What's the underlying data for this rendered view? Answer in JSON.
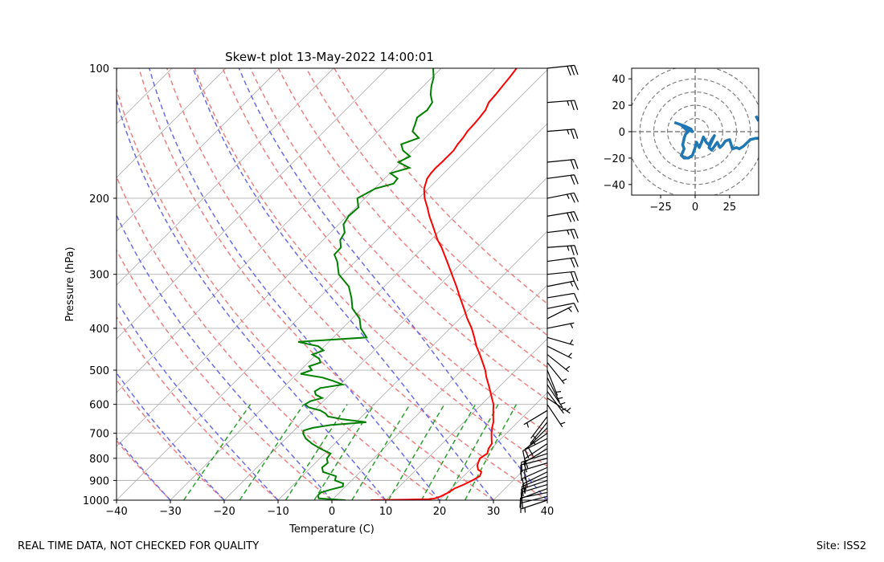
{
  "chart_data": [
    {
      "type": "skew-t",
      "title": "Skew-t plot 13-May-2022 14:00:01",
      "xlabel": "Temperature (C)",
      "ylabel": "Pressure (hPa)",
      "xlim": [
        -40,
        40
      ],
      "ylim": [
        1000,
        100
      ],
      "x_ticks": [
        -40,
        -30,
        -20,
        -10,
        0,
        10,
        20,
        30,
        40
      ],
      "x_tick_labels": [
        "−40",
        "−30",
        "−20",
        "−10",
        "0",
        "10",
        "20",
        "30",
        "40"
      ],
      "y_ticks": [
        1000,
        900,
        800,
        700,
        600,
        500,
        400,
        300,
        200,
        100
      ],
      "y_tick_labels": [
        "1000",
        "900",
        "800",
        "700",
        "600",
        "500",
        "400",
        "300",
        "200",
        "100"
      ],
      "colors": {
        "temperature": "#ff0000",
        "dewpoint": "#008000",
        "dry_adiabat": "#f08080",
        "moist_adiabat": "#6a6aee",
        "mixing_ratio": "#2ca02c",
        "isotherm": "#b0b0b0",
        "hodograph": "#1f77b4"
      },
      "series": [
        {
          "name": "temperature",
          "points": [
            [
              1000,
              7.2
            ],
            [
              995,
              17.8
            ],
            [
              990,
              18.8
            ],
            [
              980,
              19.5
            ],
            [
              960,
              20.2
            ],
            [
              940,
              20.6
            ],
            [
              920,
              21.6
            ],
            [
              900,
              22.4
            ],
            [
              880,
              23.0
            ],
            [
              860,
              22.5
            ],
            [
              850,
              21.5
            ],
            [
              830,
              20.5
            ],
            [
              800,
              19.7
            ],
            [
              780,
              20.2
            ],
            [
              760,
              19.5
            ],
            [
              740,
              19.2
            ],
            [
              720,
              18.2
            ],
            [
              700,
              17.2
            ],
            [
              680,
              16.3
            ],
            [
              660,
              15.5
            ],
            [
              640,
              14.4
            ],
            [
              620,
              13.3
            ],
            [
              600,
              12.2
            ],
            [
              580,
              10.7
            ],
            [
              560,
              9.2
            ],
            [
              540,
              7.6
            ],
            [
              520,
              5.9
            ],
            [
              500,
              4.3
            ],
            [
              480,
              2.4
            ],
            [
              460,
              0.4
            ],
            [
              440,
              -1.8
            ],
            [
              420,
              -3.8
            ],
            [
              400,
              -6.0
            ],
            [
              380,
              -8.6
            ],
            [
              360,
              -11.1
            ],
            [
              340,
              -13.8
            ],
            [
              320,
              -16.6
            ],
            [
              300,
              -19.7
            ],
            [
              280,
              -23.0
            ],
            [
              260,
              -26.6
            ],
            [
              250,
              -28.7
            ],
            [
              240,
              -30.6
            ],
            [
              230,
              -32.6
            ],
            [
              220,
              -34.7
            ],
            [
              210,
              -36.7
            ],
            [
              200,
              -38.9
            ],
            [
              190,
              -40.8
            ],
            [
              180,
              -42.1
            ],
            [
              175,
              -42.4
            ],
            [
              170,
              -42.5
            ],
            [
              165,
              -42.4
            ],
            [
              160,
              -42.4
            ],
            [
              155,
              -42.4
            ],
            [
              150,
              -42.8
            ],
            [
              145,
              -43.0
            ],
            [
              140,
              -43.4
            ],
            [
              135,
              -43.5
            ],
            [
              130,
              -43.7
            ],
            [
              125,
              -44.0
            ],
            [
              120,
              -44.8
            ],
            [
              115,
              -45.0
            ],
            [
              110,
              -45.3
            ],
            [
              105,
              -45.6
            ],
            [
              100,
              -46.0
            ]
          ]
        },
        {
          "name": "dewpoint",
          "points": [
            [
              1000,
              2.5
            ],
            [
              990,
              -2.8
            ],
            [
              975,
              -3.5
            ],
            [
              960,
              -3.5
            ],
            [
              945,
              -2.2
            ],
            [
              930,
              -0.5
            ],
            [
              915,
              -1.0
            ],
            [
              900,
              -3.1
            ],
            [
              880,
              -3.7
            ],
            [
              860,
              -6.9
            ],
            [
              840,
              -7.9
            ],
            [
              820,
              -7.7
            ],
            [
              800,
              -8.7
            ],
            [
              780,
              -8.9
            ],
            [
              760,
              -11.7
            ],
            [
              740,
              -14.2
            ],
            [
              720,
              -16.3
            ],
            [
              700,
              -17.8
            ],
            [
              690,
              -18.2
            ],
            [
              680,
              -17.0
            ],
            [
              670,
              -14.2
            ],
            [
              660,
              -8.1
            ],
            [
              650,
              -13.0
            ],
            [
              640,
              -16.3
            ],
            [
              630,
              -17.3
            ],
            [
              620,
              -18.8
            ],
            [
              610,
              -21.5
            ],
            [
              600,
              -22.8
            ],
            [
              590,
              -22.4
            ],
            [
              580,
              -20.8
            ],
            [
              570,
              -22.6
            ],
            [
              560,
              -23.4
            ],
            [
              550,
              -23.0
            ],
            [
              540,
              -19.5
            ],
            [
              530,
              -21.8
            ],
            [
              520,
              -24.6
            ],
            [
              510,
              -29.3
            ],
            [
              500,
              -27.9
            ],
            [
              490,
              -29.1
            ],
            [
              480,
              -27.7
            ],
            [
              470,
              -28.7
            ],
            [
              460,
              -30.7
            ],
            [
              450,
              -29.4
            ],
            [
              440,
              -31.2
            ],
            [
              430,
              -35.7
            ],
            [
              420,
              -23.8
            ],
            [
              400,
              -26.6
            ],
            [
              380,
              -28.6
            ],
            [
              360,
              -31.8
            ],
            [
              340,
              -34.0
            ],
            [
              320,
              -36.6
            ],
            [
              300,
              -40.7
            ],
            [
              280,
              -43.4
            ],
            [
              270,
              -45.2
            ],
            [
              260,
              -45.3
            ],
            [
              250,
              -46.8
            ],
            [
              240,
              -47.4
            ],
            [
              230,
              -49.1
            ],
            [
              220,
              -49.7
            ],
            [
              210,
              -49.5
            ],
            [
              200,
              -51.4
            ],
            [
              190,
              -49.9
            ],
            [
              185,
              -47.4
            ],
            [
              180,
              -47.6
            ],
            [
              175,
              -49.9
            ],
            [
              170,
              -47.4
            ],
            [
              165,
              -50.5
            ],
            [
              160,
              -49.4
            ],
            [
              155,
              -51.8
            ],
            [
              150,
              -53.3
            ],
            [
              145,
              -51.2
            ],
            [
              140,
              -53.6
            ],
            [
              135,
              -54.4
            ],
            [
              130,
              -55.3
            ],
            [
              125,
              -54.8
            ],
            [
              120,
              -55.3
            ],
            [
              115,
              -57.1
            ],
            [
              110,
              -58.5
            ],
            [
              105,
              -59.7
            ],
            [
              100,
              -61.5
            ]
          ]
        }
      ],
      "wind_barbs": {
        "pressures": [
          100,
          120,
          140,
          165,
          180,
          200,
          220,
          240,
          260,
          280,
          300,
          320,
          340,
          360,
          380,
          400,
          420,
          440,
          460,
          480,
          500,
          520,
          540,
          560,
          580,
          600,
          620,
          640,
          660,
          680,
          700,
          720,
          740,
          760,
          780,
          800,
          820,
          840,
          860,
          880,
          900,
          920,
          940,
          960,
          980,
          1000
        ],
        "u": [
          -28,
          -27,
          -25,
          -20,
          -22,
          -25,
          -30,
          -25,
          -27,
          -22,
          -20,
          -15,
          -12,
          -10,
          -6,
          -5,
          -7,
          -6,
          -5,
          -4,
          -2,
          -3,
          -4,
          -3,
          -3,
          -2,
          5,
          3,
          4,
          6,
          7,
          8,
          9,
          10,
          15,
          12,
          20,
          18,
          10,
          15,
          12,
          10,
          8,
          10,
          8,
          6
        ],
        "v": [
          -3,
          -2,
          -2,
          -2,
          -3,
          -5,
          -5,
          -3,
          -2,
          -3,
          -2,
          -3,
          -2,
          -2,
          -3,
          -1,
          2,
          3,
          4,
          5,
          5,
          6,
          6,
          4,
          2,
          3,
          3,
          4,
          5,
          6,
          5,
          4,
          6,
          6,
          5,
          3,
          6,
          8,
          5,
          6,
          4,
          3,
          3,
          2,
          2,
          2
        ]
      },
      "footer_left": "REAL TIME DATA, NOT CHECKED FOR QUALITY",
      "footer_right": "Site: ISS2"
    },
    {
      "type": "hodograph",
      "xlim": [
        -46,
        46
      ],
      "ylim": [
        -48,
        48
      ],
      "x_ticks": [
        -25,
        0,
        25
      ],
      "x_tick_labels": [
        "−25",
        "0",
        "25"
      ],
      "y_ticks": [
        -40,
        -20,
        0,
        20,
        40
      ],
      "y_tick_labels": [
        "−40",
        "−20",
        "0",
        "20",
        "40"
      ],
      "ring_radii": [
        10,
        20,
        30,
        40,
        50
      ],
      "trace": [
        [
          -15,
          7
        ],
        [
          -7,
          4
        ],
        [
          -3,
          2
        ],
        [
          -2,
          0
        ],
        [
          -8,
          4
        ],
        [
          -10,
          5
        ],
        [
          -7,
          2
        ],
        [
          -5,
          0
        ],
        [
          -7,
          -2
        ],
        [
          -8,
          -5
        ],
        [
          -9,
          -10
        ],
        [
          -8,
          -13
        ],
        [
          -10,
          -18
        ],
        [
          -8,
          -20
        ],
        [
          -5,
          -20
        ],
        [
          -2,
          -18
        ],
        [
          0,
          -12
        ],
        [
          1,
          -8
        ],
        [
          3,
          -12
        ],
        [
          5,
          -7
        ],
        [
          6,
          -4
        ],
        [
          8,
          -8
        ],
        [
          10,
          -10
        ],
        [
          12,
          -6
        ],
        [
          14,
          -3
        ],
        [
          10,
          -12
        ],
        [
          12,
          -14
        ],
        [
          16,
          -8
        ],
        [
          18,
          -12
        ],
        [
          20,
          -10
        ],
        [
          22,
          -7
        ],
        [
          25,
          -6
        ],
        [
          27,
          -13
        ],
        [
          30,
          -12
        ],
        [
          32,
          -13
        ],
        [
          35,
          -11
        ],
        [
          40,
          -6
        ],
        [
          44,
          -5
        ],
        [
          46,
          -5
        ]
      ],
      "trace_tail": [
        [
          44,
          12
        ],
        [
          46,
          8
        ]
      ]
    }
  ]
}
